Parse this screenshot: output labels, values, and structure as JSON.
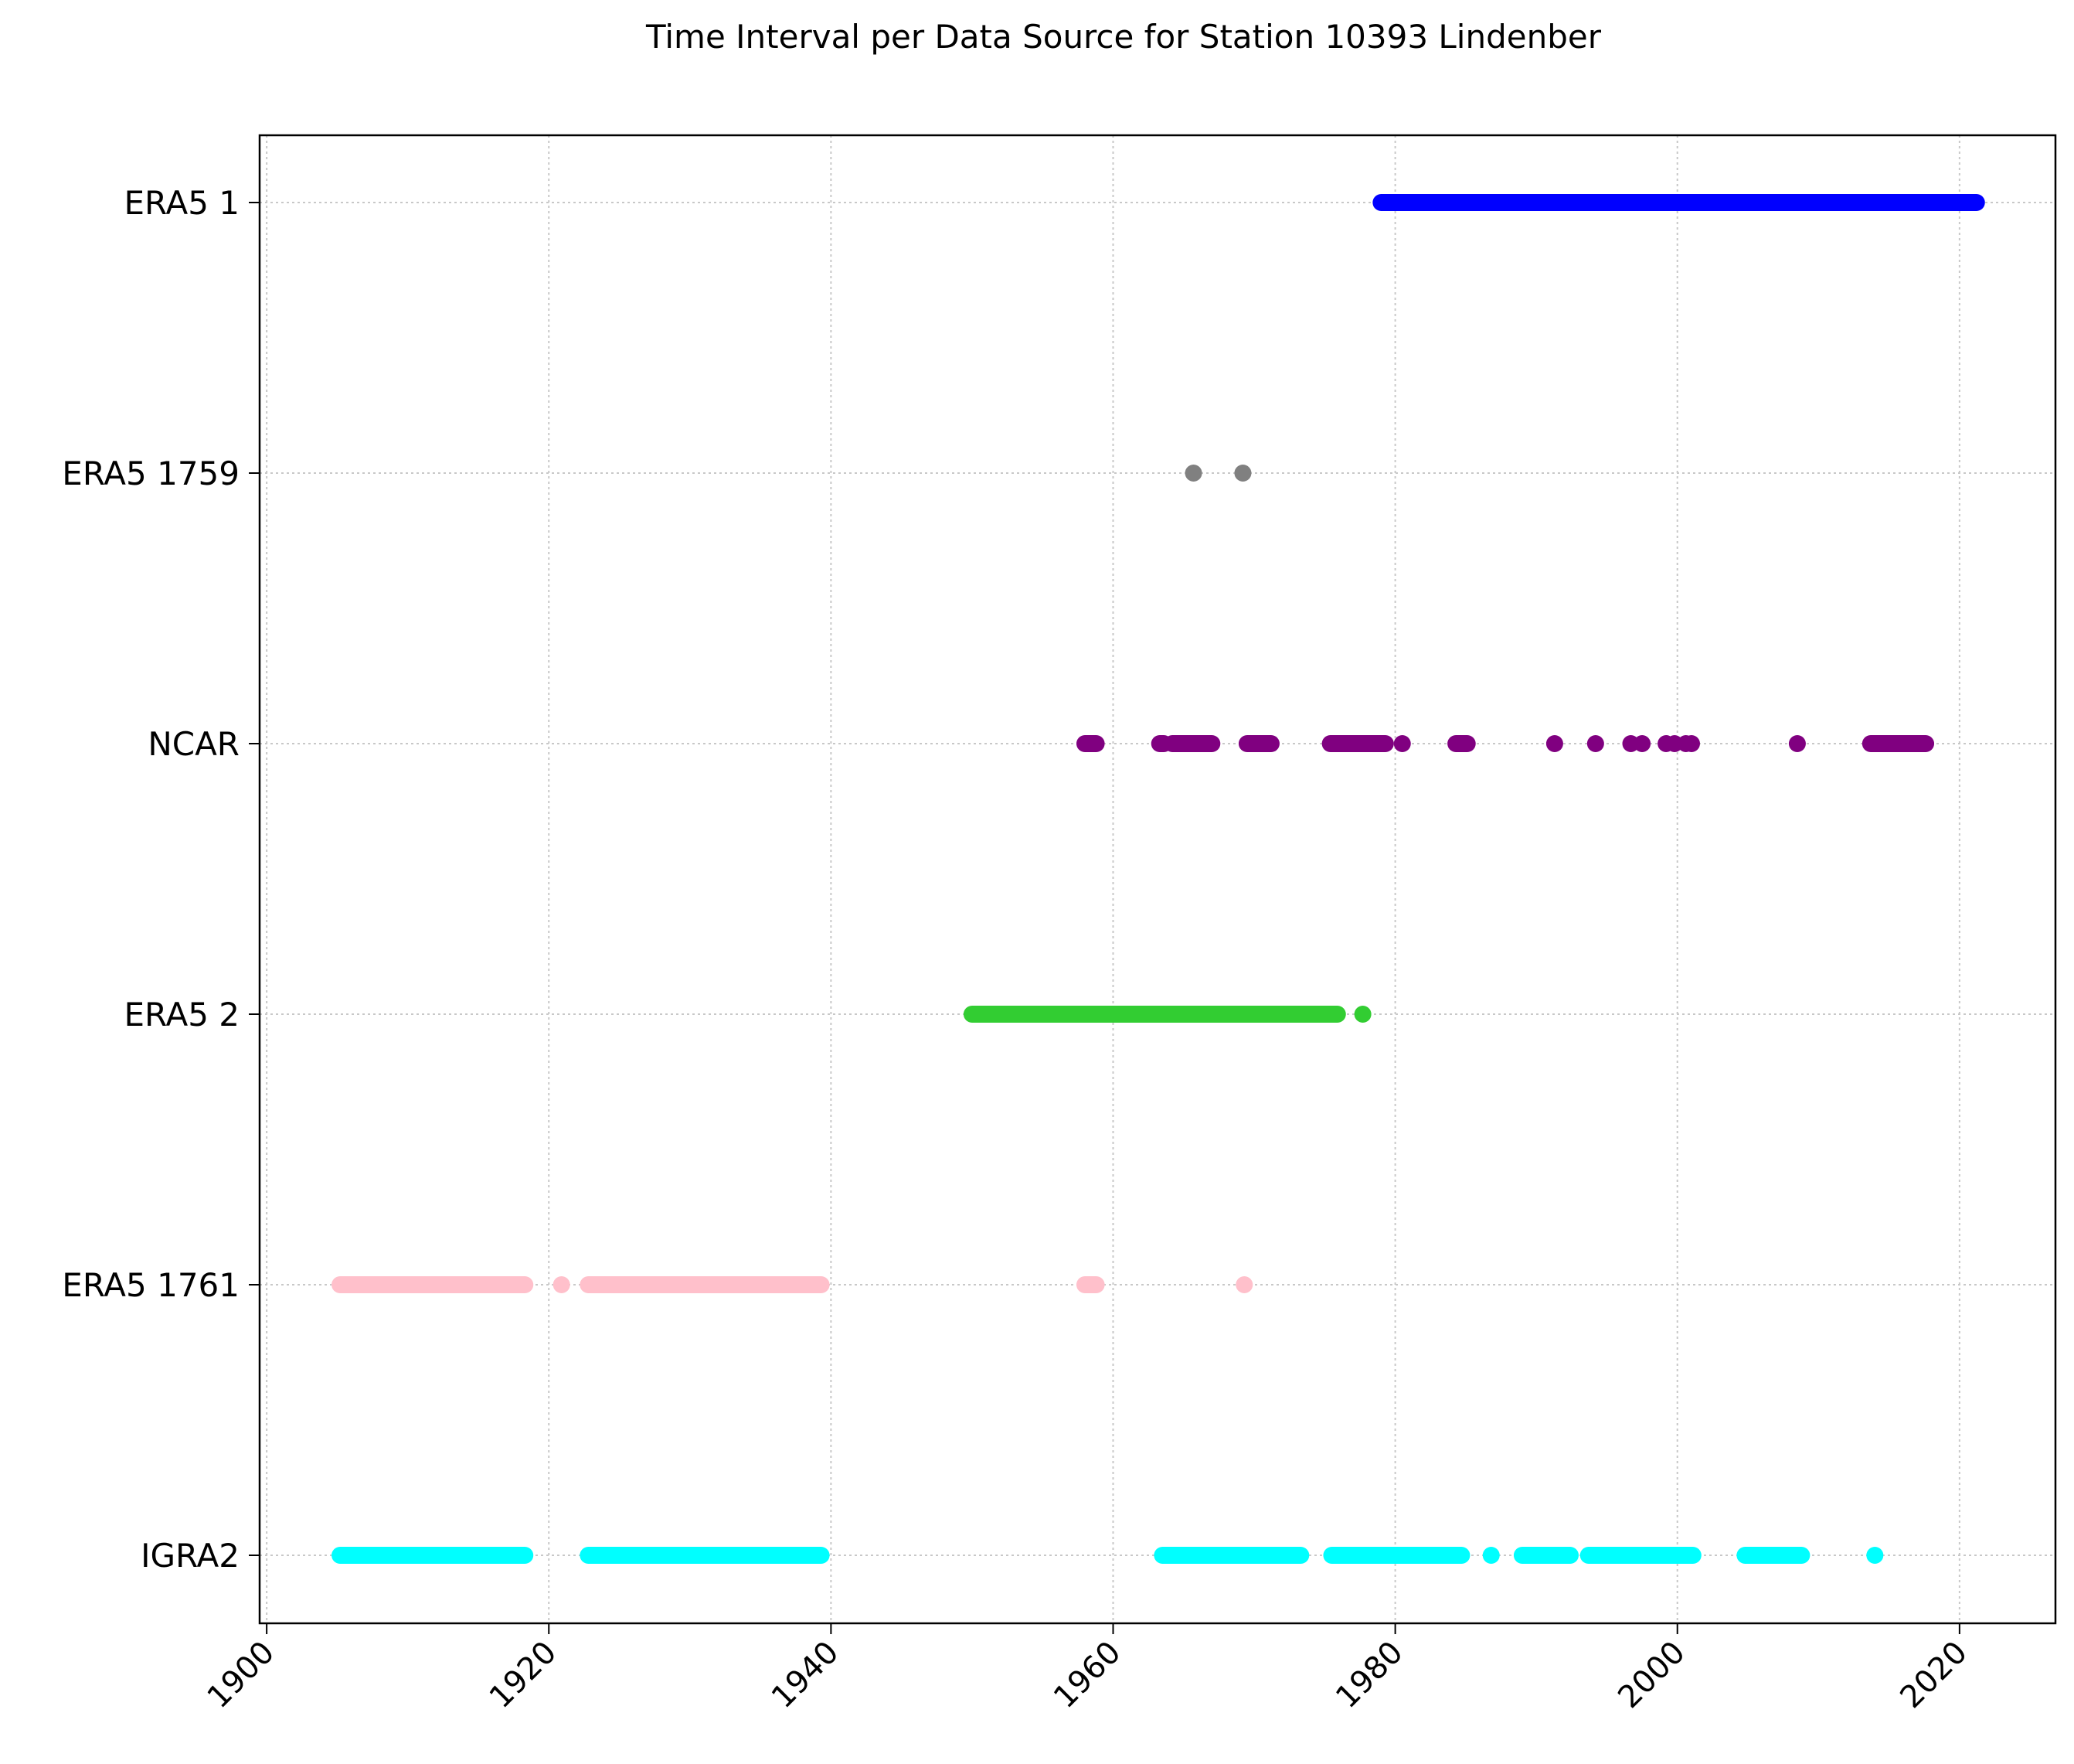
{
  "chart_data": {
    "type": "scatter",
    "title": "Time Interval per Data Source for Station 10393 Lindenber",
    "xlabel": "",
    "ylabel": "",
    "xlim": [
      1899.5,
      2026.8
    ],
    "x_ticks": [
      1900,
      1920,
      1940,
      1960,
      1980,
      2000,
      2020
    ],
    "grid": true,
    "legend": "none",
    "categories": [
      "IGRA2",
      "ERA5 1761",
      "ERA5 2",
      "NCAR",
      "ERA5 1759",
      "ERA5 1"
    ],
    "series": [
      {
        "name": "ERA5 1",
        "color": "#0000ff",
        "segments": [
          [
            1979.0,
            2021.2
          ]
        ],
        "points": []
      },
      {
        "name": "ERA5 1759",
        "color": "#808080",
        "segments": [],
        "points": [
          1965.7,
          1969.2
        ]
      },
      {
        "name": "NCAR",
        "color": "#800080",
        "segments": [
          [
            1958.0,
            1958.8
          ],
          [
            1963.3,
            1963.6
          ],
          [
            1964.2,
            1967.0
          ],
          [
            1969.5,
            1971.2
          ],
          [
            1975.4,
            1979.3
          ],
          [
            1984.3,
            1985.1
          ],
          [
            2013.7,
            2017.6
          ]
        ],
        "points": [
          1980.5,
          1991.3,
          1994.2,
          1996.7,
          1997.5,
          1999.2,
          1999.8,
          2000.6,
          2001.0,
          2008.5
        ]
      },
      {
        "name": "ERA5 2",
        "color": "#32cd32",
        "segments": [
          [
            1950.0,
            1975.9
          ]
        ],
        "points": [
          1977.7
        ]
      },
      {
        "name": "ERA5 1761",
        "color": "#ffc0cb",
        "segments": [
          [
            1905.2,
            1918.3
          ],
          [
            1922.8,
            1939.3
          ],
          [
            1958.0,
            1958.8
          ]
        ],
        "points": [
          1920.9,
          1969.3
        ]
      },
      {
        "name": "IGRA2",
        "color": "#00ffff",
        "segments": [
          [
            1905.2,
            1918.3
          ],
          [
            1922.8,
            1939.3
          ],
          [
            1963.5,
            1973.3
          ],
          [
            1975.5,
            1984.7
          ],
          [
            1989.0,
            1992.4
          ],
          [
            1993.7,
            2001.1
          ],
          [
            2004.8,
            2008.8
          ]
        ],
        "points": [
          1986.8,
          2014.0
        ]
      }
    ]
  }
}
